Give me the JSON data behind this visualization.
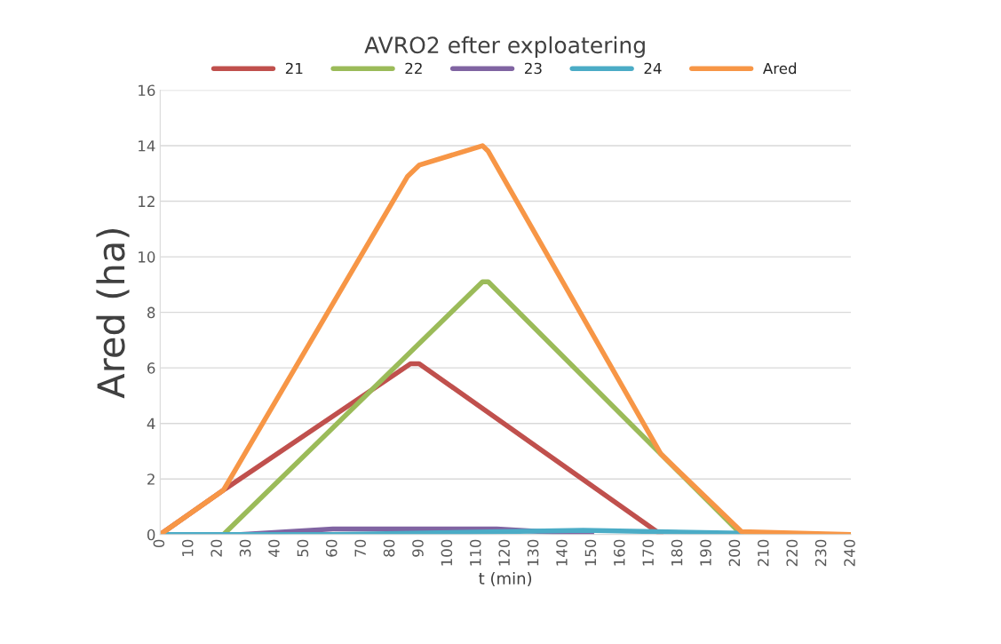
{
  "chart_data": {
    "type": "line",
    "title": "AVRO2 efter exploatering",
    "xlabel": "t (min)",
    "ylabel": "Ared (ha)",
    "xlim": [
      0,
      240
    ],
    "xticks": [
      0,
      10,
      20,
      30,
      40,
      50,
      60,
      70,
      80,
      90,
      100,
      110,
      120,
      130,
      140,
      150,
      160,
      170,
      180,
      190,
      200,
      210,
      220,
      230,
      240
    ],
    "ylim": [
      0,
      16
    ],
    "yticks": [
      0,
      2,
      4,
      6,
      8,
      10,
      12,
      14,
      16
    ],
    "grid": "y",
    "legend": "top",
    "marker": "none",
    "line_style": "solid",
    "series": [
      {
        "name": "21",
        "color": "#c0504d",
        "x": [
          0,
          22,
          87,
          90,
          174
        ],
        "values": [
          0,
          1.6,
          6.15,
          6.15,
          0
        ]
      },
      {
        "name": "22",
        "color": "#9bbb59",
        "x": [
          0,
          22,
          112,
          114,
          202,
          240
        ],
        "values": [
          0,
          0,
          9.1,
          9.1,
          0,
          0
        ]
      },
      {
        "name": "23",
        "color": "#8064a2",
        "x": [
          0,
          28,
          60,
          117,
          150
        ],
        "values": [
          0,
          0,
          0.2,
          0.2,
          0
        ]
      },
      {
        "name": "24",
        "color": "#4bacc6",
        "x": [
          0,
          60,
          147,
          202
        ],
        "values": [
          0,
          0,
          0.15,
          0.05
        ]
      },
      {
        "name": "Ared",
        "color": "#f79646",
        "x": [
          0,
          22,
          86,
          90,
          112,
          114,
          174,
          202,
          240
        ],
        "values": [
          0,
          1.6,
          12.9,
          13.3,
          14.0,
          13.8,
          2.9,
          0.1,
          0
        ]
      }
    ]
  }
}
